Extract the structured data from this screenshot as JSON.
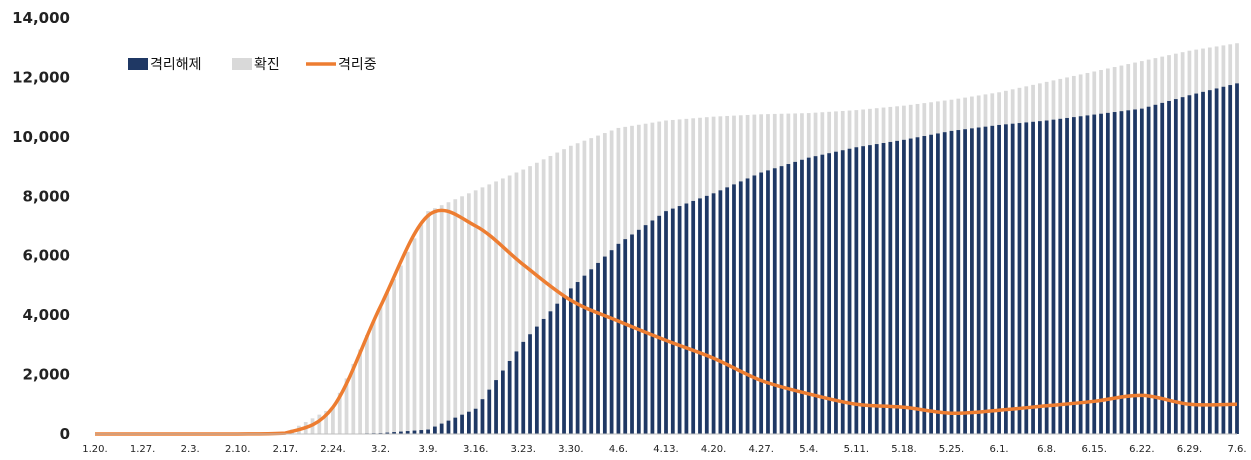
{
  "chart_data": {
    "type": "bar",
    "title": "",
    "xlabel": "",
    "ylabel": "",
    "ylim": [
      0,
      14000
    ],
    "yticks": [
      "0",
      "2,000",
      "4,000",
      "6,000",
      "8,000",
      "10,000",
      "12,000",
      "14,000"
    ],
    "grid": false,
    "legend_position": "top-left",
    "x": [
      "1.20.",
      "1.27.",
      "2.3.",
      "2.10.",
      "2.17.",
      "2.24.",
      "3.2.",
      "3.9.",
      "3.16.",
      "3.23.",
      "3.30.",
      "4.6.",
      "4.13.",
      "4.20.",
      "4.27.",
      "5.4.",
      "5.11.",
      "5.18.",
      "5.25.",
      "6.1.",
      "6.8.",
      "6.15.",
      "6.22.",
      "6.29.",
      "7.6."
    ],
    "series": [
      {
        "name": "격리해제",
        "kind": "bar",
        "color": "#1f3864",
        "values": [
          0,
          0,
          0,
          0,
          0,
          0,
          30,
          150,
          850,
          3100,
          4900,
          6400,
          7500,
          8100,
          8800,
          9300,
          9650,
          9900,
          10200,
          10400,
          10550,
          10750,
          10950,
          11400,
          11800
        ]
      },
      {
        "name": "확진",
        "kind": "bar",
        "color": "#d9d9d9",
        "values": [
          0,
          0,
          0,
          0,
          30,
          900,
          4300,
          7500,
          8200,
          8900,
          9700,
          10300,
          10550,
          10680,
          10760,
          10800,
          10900,
          11050,
          11250,
          11500,
          11850,
          12200,
          12550,
          12900,
          13150
        ]
      },
      {
        "name": "격리중",
        "kind": "line",
        "color": "#ed7d31",
        "values": [
          0,
          0,
          0,
          0,
          30,
          900,
          4300,
          7350,
          7000,
          5700,
          4500,
          3800,
          3150,
          2550,
          1800,
          1350,
          1000,
          900,
          700,
          800,
          950,
          1100,
          1300,
          1000,
          1000
        ]
      }
    ]
  }
}
